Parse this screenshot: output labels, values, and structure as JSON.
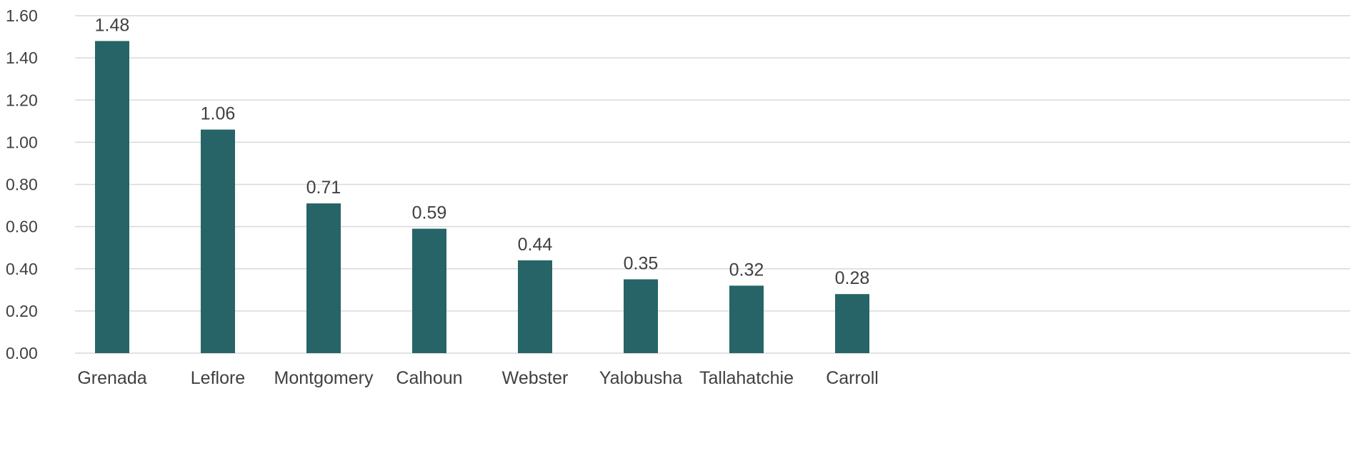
{
  "chart_data": {
    "type": "bar",
    "title": "",
    "xlabel": "",
    "ylabel": "",
    "categories": [
      "Grenada",
      "Leflore",
      "Montgomery",
      "Calhoun",
      "Webster",
      "Yalobusha",
      "Tallahatchie",
      "Carroll"
    ],
    "values": [
      1.48,
      1.06,
      0.71,
      0.59,
      0.44,
      0.35,
      0.32,
      0.28
    ],
    "value_labels": [
      "1.48",
      "1.06",
      "0.71",
      "0.59",
      "0.44",
      "0.35",
      "0.32",
      "0.28"
    ],
    "ylim": [
      0,
      1.6
    ],
    "yticks": [
      0,
      0.2,
      0.4,
      0.6,
      0.8,
      1.0,
      1.2,
      1.4,
      1.6
    ],
    "ytick_labels": [
      "0.00",
      "0.20",
      "0.40",
      "0.60",
      "0.80",
      "1.00",
      "1.20",
      "1.40",
      "1.60"
    ],
    "grid": true,
    "legend": "none",
    "colors": {
      "bar": "#266467",
      "grid": "#d9d9d9",
      "text": "#404040"
    }
  }
}
